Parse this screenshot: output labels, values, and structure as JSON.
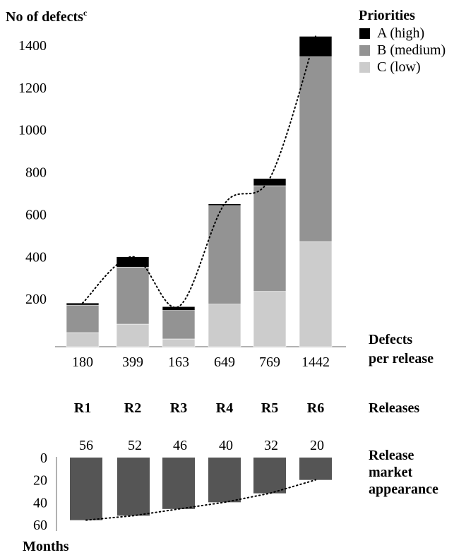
{
  "chart_data": [
    {
      "type": "bar",
      "stacked": true,
      "ylabel": "No of defects",
      "ylabel_superscript": "c",
      "yticks": [
        200,
        400,
        600,
        800,
        1000,
        1200,
        1400
      ],
      "ylim": [
        0,
        1400
      ],
      "categories": [
        "R1",
        "R2",
        "R3",
        "R4",
        "R5",
        "R6"
      ],
      "category_axis_title": "Releases",
      "totals": [
        "180",
        "399",
        "163",
        "649",
        "769",
        "1442"
      ],
      "totals_label": [
        "Defects",
        "per release"
      ],
      "legend_title": "Priorities",
      "legend_position": "top-right",
      "series": [
        {
          "name": "C (low)",
          "color": "#cccccc",
          "values": [
            40,
            80,
            10,
            175,
            235,
            470
          ]
        },
        {
          "name": "B (medium)",
          "color": "#939393",
          "values": [
            130,
            270,
            135,
            465,
            500,
            875
          ]
        },
        {
          "name": "A (high)",
          "color": "#000000",
          "values": [
            10,
            49,
            18,
            9,
            34,
            97
          ]
        }
      ],
      "trend_line": "dotted"
    },
    {
      "type": "bar",
      "inverted": true,
      "ylabel": "Months",
      "yticks": [
        0,
        20,
        40,
        60
      ],
      "ylim": [
        0,
        60
      ],
      "categories": [
        "R1",
        "R2",
        "R3",
        "R4",
        "R5",
        "R6"
      ],
      "values": [
        56,
        52,
        46,
        40,
        32,
        20
      ],
      "data_labels": [
        "56",
        "52",
        "46",
        "40",
        "32",
        "20"
      ],
      "side_label": [
        "Release",
        "market",
        "appearance"
      ],
      "color": "#555555",
      "trend_line": "dotted"
    }
  ]
}
